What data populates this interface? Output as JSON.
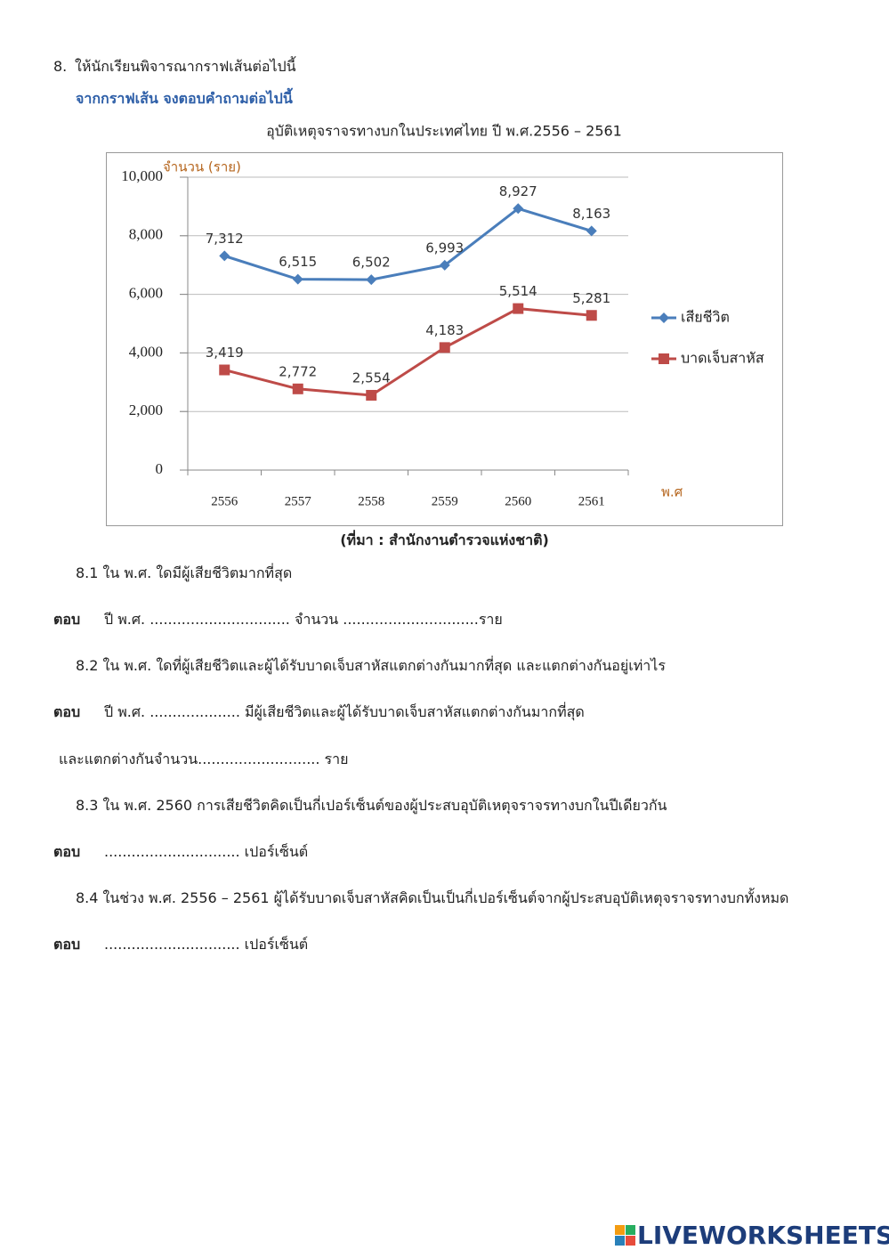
{
  "question": {
    "number": "8.",
    "text": "ให้นักเรียนพิจารณากราฟเส้นต่อไปนี้",
    "instruction": "จากกราฟเส้น จงตอบคำถามต่อไปนี้"
  },
  "chart_data": {
    "type": "line",
    "title": "อุบัติเหตุจราจรทางบกในประเทศไทย ปี พ.ศ.2556 – 2561",
    "y_label": "จำนวน (ราย)",
    "x_label": "พ.ศ",
    "categories": [
      "2556",
      "2557",
      "2558",
      "2559",
      "2560",
      "2561"
    ],
    "series": [
      {
        "name": "เสียชีวิต",
        "color": "#4a7ebb",
        "marker": "diamond",
        "values": [
          7312,
          6515,
          6502,
          6993,
          8927,
          8163
        ],
        "value_labels": [
          "7,312",
          "6,515",
          "6,502",
          "6,993",
          "8,927",
          "8,163"
        ]
      },
      {
        "name": "บาดเจ็บสาหัส",
        "color": "#be4b48",
        "marker": "square",
        "values": [
          3419,
          2772,
          2554,
          4183,
          5514,
          5281
        ],
        "value_labels": [
          "3,419",
          "2,772",
          "2,554",
          "4,183",
          "5,514",
          "5,281"
        ]
      }
    ],
    "ylim": [
      0,
      10000
    ],
    "yticks": [
      0,
      {
        "value": 2000,
        "label": "2,000"
      },
      {
        "value": 4000,
        "label": "4,000"
      },
      {
        "value": 6000,
        "label": "6,000"
      },
      {
        "value": 8000,
        "label": "8,000"
      },
      {
        "value": 10000,
        "label": "10,000"
      }
    ],
    "grid": true,
    "legend": "right"
  },
  "source": "(ที่มา : สำนักงานตำรวจแห่งชาติ)",
  "items": [
    {
      "question": "8.1 ใน พ.ศ. ใดมีผู้เสียชีวิตมากที่สุด",
      "answer_label": "ตอบ",
      "answer": [
        "ปี พ.ศ. ............................... จำนวน ..............................ราย"
      ]
    },
    {
      "question": "8.2 ใน พ.ศ. ใดที่ผู้เสียชีวิตและผู้ได้รับบาดเจ็บสาหัสแตกต่างกันมากที่สุด และแตกต่างกันอยู่เท่าไร",
      "answer_label": "ตอบ",
      "answer": [
        "ปี พ.ศ. .................... มีผู้เสียชีวิตและผู้ได้รับบาดเจ็บสาหัสแตกต่างกันมากที่สุด",
        "และแตกต่างกันจำนวน........................... ราย"
      ]
    },
    {
      "question": "8.3 ใน พ.ศ. 2560 การเสียชีวิตคิดเป็นกี่เปอร์เซ็นต์ของผู้ประสบอุบัติเหตุจราจรทางบกในปีเดียวกัน",
      "answer_label": "ตอบ",
      "answer": [
        ".............................. เปอร์เซ็นต์"
      ]
    },
    {
      "question": "8.4 ในช่วง พ.ศ. 2556 – 2561 ผู้ได้รับบาดเจ็บสาหัสคิดเป็นเป็นกี่เปอร์เซ็นต์จากผู้ประสบอุบัติเหตุจราจรทางบกทั้งหมด",
      "answer_label": "ตอบ",
      "answer": [
        ".............................. เปอร์เซ็นต์"
      ]
    }
  ],
  "footer": {
    "brand": "LIVEWORKSHEETS"
  }
}
